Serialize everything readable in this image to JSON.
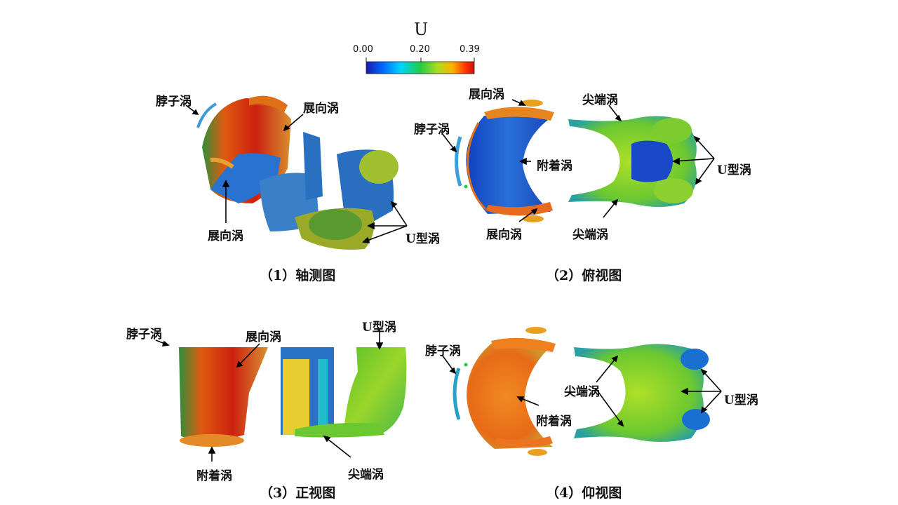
{
  "colorbar": {
    "title": "U",
    "ticks": [
      "0.00",
      "0.20",
      "0.39"
    ],
    "colors": [
      "#1a1aa8",
      "#0066ff",
      "#00d4ff",
      "#22cc44",
      "#aadd22",
      "#ffb000",
      "#ff3300",
      "#c81010"
    ]
  },
  "panels": [
    {
      "caption": "（1）轴测图",
      "labels": {
        "neck": "脖子涡",
        "span_top": "展向涡",
        "span_bottom": "展向涡",
        "u": "U型涡"
      }
    },
    {
      "caption": "（2）俯视图",
      "labels": {
        "span_top": "展向涡",
        "neck": "脖子涡",
        "attached": "附着涡",
        "span_bottom": "展向涡",
        "tip_top": "尖端涡",
        "u": "U型涡",
        "tip_bottom": "尖端涡"
      }
    },
    {
      "caption": "（3）正视图",
      "labels": {
        "neck": "脖子涡",
        "span": "展向涡",
        "u": "U型涡",
        "attached": "附着涡",
        "tip": "尖端涡"
      }
    },
    {
      "caption": "（4）仰视图",
      "labels": {
        "neck": "脖子涡",
        "tip": "尖端涡",
        "attached": "附着涡",
        "u": "U型涡"
      }
    }
  ]
}
